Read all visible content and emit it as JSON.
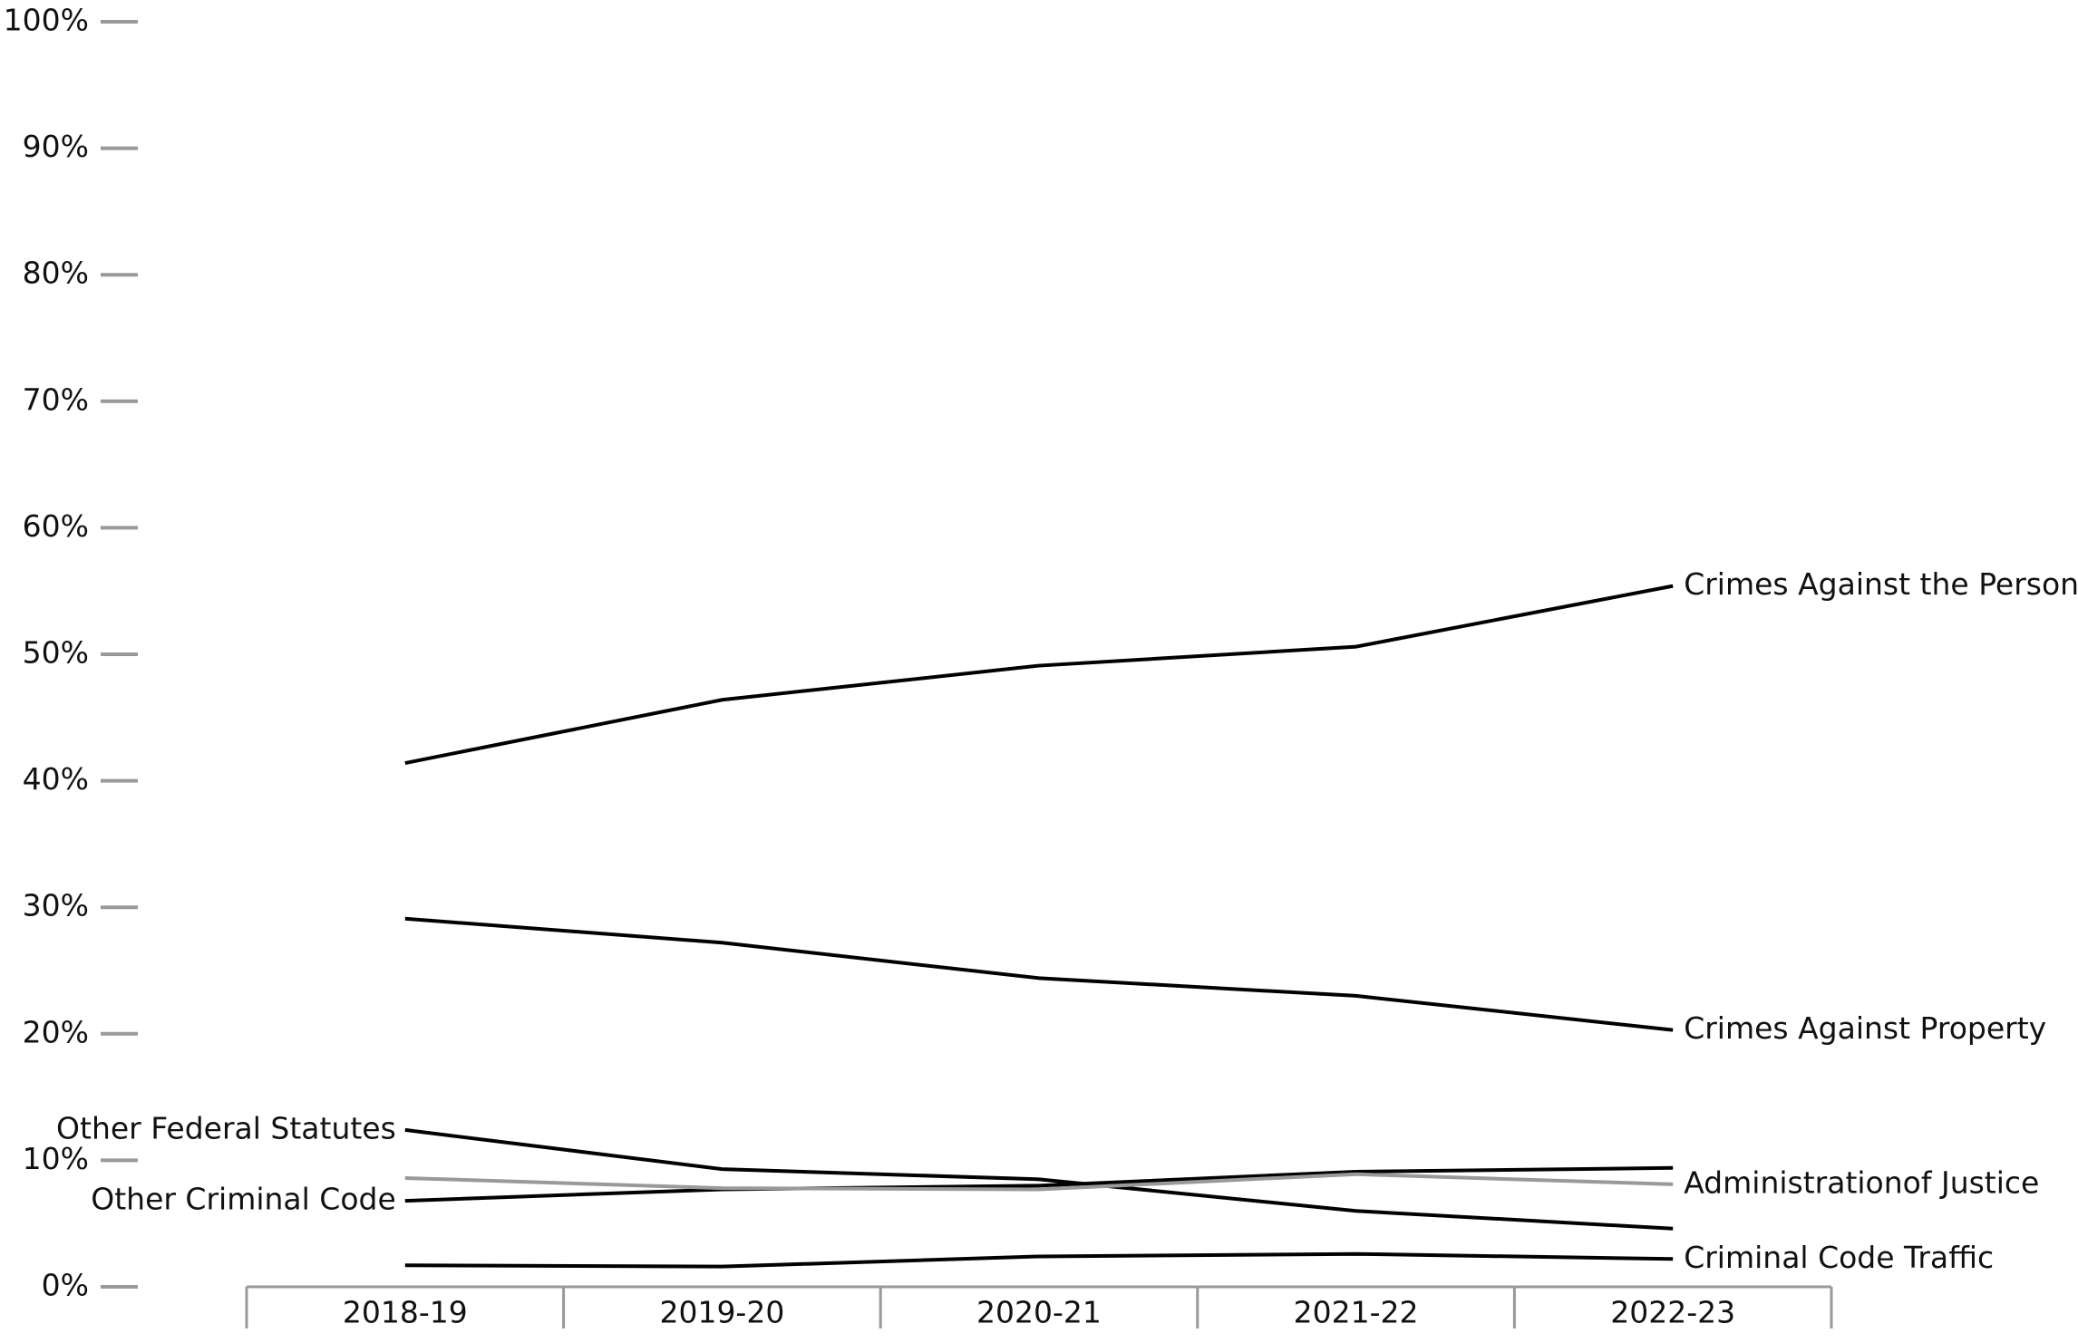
{
  "chart_data": {
    "type": "line",
    "categories": [
      "2018-19",
      "2019-20",
      "2020-21",
      "2021-22",
      "2022-23"
    ],
    "series": [
      {
        "name": "Crimes Against the Person",
        "color": "#000000",
        "label_side": "right",
        "values": [
          41.4,
          46.4,
          49.1,
          50.6,
          55.4
        ]
      },
      {
        "name": "Crimes Against Property",
        "color": "#000000",
        "label_side": "right",
        "values": [
          29.1,
          27.2,
          24.4,
          23.0,
          20.3
        ]
      },
      {
        "name": "Other Federal Statutes",
        "color": "#000000",
        "label_side": "left",
        "values": [
          12.4,
          9.3,
          8.5,
          6.0,
          4.6
        ]
      },
      {
        "name": "Other Criminal Code",
        "color": "#000000",
        "label_side": "left",
        "values": [
          6.8,
          7.7,
          8.0,
          9.1,
          9.4
        ]
      },
      {
        "name": "Administrationof Justice",
        "color": "#999999",
        "label_side": "right",
        "values": [
          8.6,
          7.8,
          7.7,
          8.9,
          8.1
        ]
      },
      {
        "name": "Criminal Code Traffic",
        "color": "#000000",
        "label_side": "right",
        "values": [
          1.7,
          1.6,
          2.4,
          2.6,
          2.2
        ]
      }
    ],
    "ylim": [
      0,
      100
    ],
    "yticks": [
      {
        "value": 0,
        "label": "0%"
      },
      {
        "value": 10,
        "label": "10%"
      },
      {
        "value": 20,
        "label": "20%"
      },
      {
        "value": 30,
        "label": "30%"
      },
      {
        "value": 40,
        "label": "40%"
      },
      {
        "value": 50,
        "label": "50%"
      },
      {
        "value": 60,
        "label": "60%"
      },
      {
        "value": 70,
        "label": "70%"
      },
      {
        "value": 80,
        "label": "80%"
      },
      {
        "value": 90,
        "label": "90%"
      },
      {
        "value": 100,
        "label": "100%"
      }
    ]
  }
}
